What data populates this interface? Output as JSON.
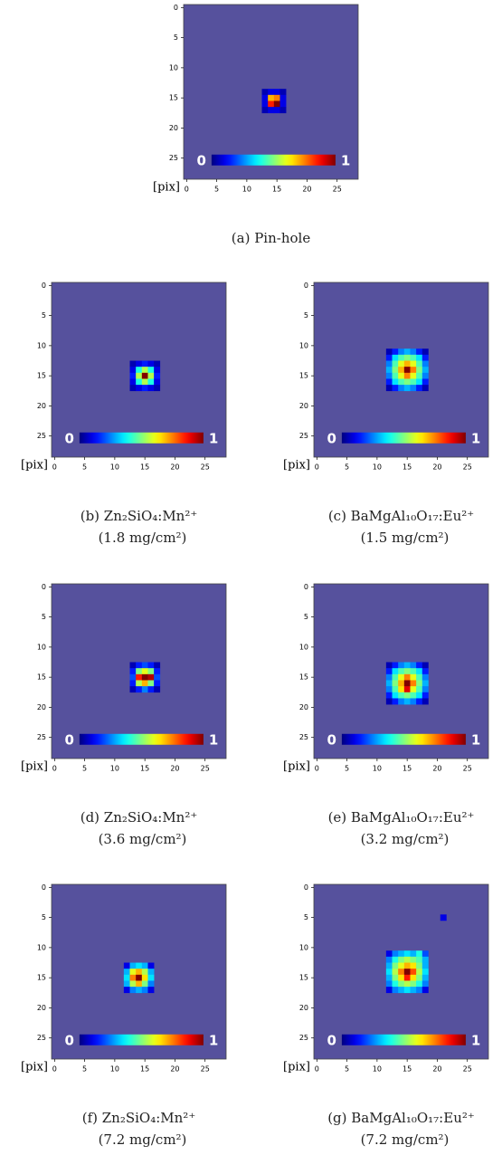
{
  "chart_data": [
    {
      "type": "heatmap",
      "caption": [
        "(a) Pin-hole"
      ],
      "axis_label": "[pix]",
      "colormap": "jet",
      "background": "#56519d",
      "xlim": [
        -0.5,
        28.5
      ],
      "ylim": [
        28.5,
        -0.5
      ],
      "xticks": [
        0,
        5,
        10,
        15,
        20,
        25
      ],
      "yticks": [
        0,
        5,
        10,
        15,
        20,
        25
      ],
      "colorbar_ticks": [
        0,
        1
      ],
      "x": [
        13,
        14,
        15,
        16,
        13,
        14,
        15,
        16,
        13,
        14,
        15,
        16,
        13,
        14,
        15,
        16
      ],
      "y": [
        14,
        14,
        14,
        14,
        15,
        15,
        15,
        15,
        16,
        16,
        16,
        16,
        17,
        17,
        17,
        17
      ],
      "values": [
        0.05,
        0.1,
        0.1,
        0.05,
        0.1,
        0.7,
        0.75,
        0.1,
        0.1,
        0.85,
        1,
        0.1,
        0.05,
        0.1,
        0.1,
        0.05
      ]
    },
    {
      "type": "heatmap",
      "caption": [
        "(b) Zn₂SiO₄:Mn²⁺",
        "(1.8 mg/cm²)"
      ],
      "axis_label": "[pix]",
      "colormap": "jet",
      "background": "#56519d",
      "xlim": [
        -0.5,
        28.5
      ],
      "ylim": [
        28.5,
        -0.5
      ],
      "xticks": [
        0,
        5,
        10,
        15,
        20,
        25
      ],
      "yticks": [
        0,
        5,
        10,
        15,
        20,
        25
      ],
      "colorbar_ticks": [
        0,
        1
      ],
      "x": [
        13,
        14,
        15,
        16,
        17,
        13,
        14,
        15,
        16,
        17,
        13,
        14,
        15,
        16,
        17,
        13,
        14,
        15,
        16,
        17,
        13,
        14,
        15,
        16,
        17
      ],
      "y": [
        13,
        13,
        13,
        13,
        13,
        14,
        14,
        14,
        14,
        14,
        15,
        15,
        15,
        15,
        15,
        16,
        16,
        16,
        16,
        16,
        17,
        17,
        17,
        17,
        17
      ],
      "values": [
        0.05,
        0.1,
        0.15,
        0.1,
        0.05,
        0.1,
        0.4,
        0.55,
        0.4,
        0.1,
        0.15,
        0.55,
        1,
        0.55,
        0.15,
        0.1,
        0.4,
        0.55,
        0.4,
        0.1,
        0.05,
        0.1,
        0.15,
        0.1,
        0.05
      ]
    },
    {
      "type": "heatmap",
      "caption": [
        "(c) BaMgAl₁₀O₁₇:Eu²⁺",
        "(1.5 mg/cm²)"
      ],
      "axis_label": "[pix]",
      "colormap": "jet",
      "background": "#56519d",
      "xlim": [
        -0.5,
        28.5
      ],
      "ylim": [
        28.5,
        -0.5
      ],
      "xticks": [
        0,
        5,
        10,
        15,
        20,
        25
      ],
      "yticks": [
        0,
        5,
        10,
        15,
        20,
        25
      ],
      "colorbar_ticks": [
        0,
        1
      ],
      "x": [
        12,
        13,
        14,
        15,
        16,
        17,
        18,
        12,
        13,
        14,
        15,
        16,
        17,
        18,
        12,
        13,
        14,
        15,
        16,
        17,
        18,
        12,
        13,
        14,
        15,
        16,
        17,
        18,
        12,
        13,
        14,
        15,
        16,
        17,
        18,
        12,
        13,
        14,
        15,
        16,
        17,
        18,
        12,
        13,
        14,
        15,
        16,
        17,
        18
      ],
      "y": [
        11,
        11,
        11,
        11,
        11,
        11,
        11,
        12,
        12,
        12,
        12,
        12,
        12,
        12,
        13,
        13,
        13,
        13,
        13,
        13,
        13,
        14,
        14,
        14,
        14,
        14,
        14,
        14,
        15,
        15,
        15,
        15,
        15,
        15,
        15,
        16,
        16,
        16,
        16,
        16,
        16,
        16,
        17,
        17,
        17,
        17,
        17,
        17,
        17
      ],
      "values": [
        0.05,
        0.15,
        0.25,
        0.3,
        0.25,
        0.15,
        0.05,
        0.15,
        0.35,
        0.45,
        0.5,
        0.45,
        0.35,
        0.15,
        0.25,
        0.45,
        0.6,
        0.7,
        0.6,
        0.45,
        0.25,
        0.3,
        0.5,
        0.7,
        1,
        0.75,
        0.5,
        0.3,
        0.25,
        0.45,
        0.6,
        0.75,
        0.6,
        0.45,
        0.25,
        0.15,
        0.35,
        0.45,
        0.5,
        0.45,
        0.35,
        0.15,
        0.05,
        0.15,
        0.25,
        0.3,
        0.25,
        0.15,
        0.05
      ]
    },
    {
      "type": "heatmap",
      "caption": [
        "(d) Zn₂SiO₄:Mn²⁺",
        "(3.6 mg/cm²)"
      ],
      "axis_label": "[pix]",
      "colormap": "jet",
      "background": "#56519d",
      "xlim": [
        -0.5,
        28.5
      ],
      "ylim": [
        28.5,
        -0.5
      ],
      "xticks": [
        0,
        5,
        10,
        15,
        20,
        25
      ],
      "yticks": [
        0,
        5,
        10,
        15,
        20,
        25
      ],
      "colorbar_ticks": [
        0,
        1
      ],
      "x": [
        13,
        14,
        15,
        16,
        17,
        13,
        14,
        15,
        16,
        17,
        13,
        14,
        15,
        16,
        17,
        13,
        14,
        15,
        16,
        17,
        13,
        14,
        15,
        16,
        17
      ],
      "y": [
        13,
        13,
        13,
        13,
        13,
        14,
        14,
        14,
        14,
        14,
        15,
        15,
        15,
        15,
        15,
        16,
        16,
        16,
        16,
        16,
        17,
        17,
        17,
        17,
        17
      ],
      "values": [
        0.05,
        0.15,
        0.2,
        0.15,
        0.05,
        0.15,
        0.5,
        0.6,
        0.5,
        0.15,
        0.2,
        0.85,
        1,
        0.95,
        0.2,
        0.15,
        0.55,
        0.7,
        0.5,
        0.15,
        0.05,
        0.15,
        0.25,
        0.15,
        0.05
      ]
    },
    {
      "type": "heatmap",
      "caption": [
        "(e) BaMgAl₁₀O₁₇:Eu²⁺",
        "(3.2 mg/cm²)"
      ],
      "axis_label": "[pix]",
      "colormap": "jet",
      "background": "#56519d",
      "xlim": [
        -0.5,
        28.5
      ],
      "ylim": [
        28.5,
        -0.5
      ],
      "xticks": [
        0,
        5,
        10,
        15,
        20,
        25
      ],
      "yticks": [
        0,
        5,
        10,
        15,
        20,
        25
      ],
      "colorbar_ticks": [
        0,
        1
      ],
      "x": [
        12,
        13,
        14,
        15,
        16,
        17,
        18,
        12,
        13,
        14,
        15,
        16,
        17,
        18,
        12,
        13,
        14,
        15,
        16,
        17,
        18,
        12,
        13,
        14,
        15,
        16,
        17,
        18,
        12,
        13,
        14,
        15,
        16,
        17,
        18,
        12,
        13,
        14,
        15,
        16,
        17,
        18,
        12,
        13,
        14,
        15,
        16,
        17,
        18
      ],
      "y": [
        13,
        13,
        13,
        13,
        13,
        13,
        13,
        14,
        14,
        14,
        14,
        14,
        14,
        14,
        15,
        15,
        15,
        15,
        15,
        15,
        15,
        16,
        16,
        16,
        16,
        16,
        16,
        16,
        17,
        17,
        17,
        17,
        17,
        17,
        17,
        18,
        18,
        18,
        18,
        18,
        18,
        18,
        19,
        19,
        19,
        19,
        19,
        19,
        19
      ],
      "values": [
        0.05,
        0.15,
        0.25,
        0.3,
        0.25,
        0.15,
        0.05,
        0.15,
        0.35,
        0.45,
        0.5,
        0.45,
        0.35,
        0.15,
        0.25,
        0.45,
        0.6,
        0.75,
        0.6,
        0.45,
        0.25,
        0.3,
        0.5,
        0.7,
        1,
        0.75,
        0.5,
        0.3,
        0.25,
        0.45,
        0.65,
        0.9,
        0.6,
        0.45,
        0.25,
        0.15,
        0.35,
        0.45,
        0.5,
        0.45,
        0.35,
        0.15,
        0.05,
        0.15,
        0.25,
        0.3,
        0.25,
        0.15,
        0.05
      ]
    },
    {
      "type": "heatmap",
      "caption": [
        "(f) Zn₂SiO₄:Mn²⁺",
        "(7.2 mg/cm²)"
      ],
      "axis_label": "[pix]",
      "colormap": "jet",
      "background": "#56519d",
      "xlim": [
        -0.5,
        28.5
      ],
      "ylim": [
        28.5,
        -0.5
      ],
      "xticks": [
        0,
        5,
        10,
        15,
        20,
        25
      ],
      "yticks": [
        0,
        5,
        10,
        15,
        20,
        25
      ],
      "colorbar_ticks": [
        0,
        1
      ],
      "x": [
        12,
        13,
        14,
        15,
        16,
        12,
        13,
        14,
        15,
        16,
        12,
        13,
        14,
        15,
        16,
        12,
        13,
        14,
        15,
        16,
        12,
        13,
        14,
        15,
        16
      ],
      "y": [
        13,
        13,
        13,
        13,
        13,
        14,
        14,
        14,
        14,
        14,
        15,
        15,
        15,
        15,
        15,
        16,
        16,
        16,
        16,
        16,
        17,
        17,
        17,
        17,
        17
      ],
      "values": [
        0.1,
        0.3,
        0.35,
        0.3,
        0.1,
        0.3,
        0.6,
        0.7,
        0.55,
        0.3,
        0.35,
        0.75,
        1,
        0.65,
        0.35,
        0.3,
        0.55,
        0.7,
        0.5,
        0.25,
        0.1,
        0.25,
        0.3,
        0.25,
        0.1
      ]
    },
    {
      "type": "heatmap",
      "caption": [
        "(g) BaMgAl₁₀O₁₇:Eu²⁺",
        "(7.2 mg/cm²)"
      ],
      "axis_label": "[pix]",
      "colormap": "jet",
      "background": "#56519d",
      "xlim": [
        -0.5,
        28.5
      ],
      "ylim": [
        28.5,
        -0.5
      ],
      "xticks": [
        0,
        5,
        10,
        15,
        20,
        25
      ],
      "yticks": [
        0,
        5,
        10,
        15,
        20,
        25
      ],
      "colorbar_ticks": [
        0,
        1
      ],
      "x": [
        12,
        13,
        14,
        15,
        16,
        17,
        18,
        12,
        13,
        14,
        15,
        16,
        17,
        18,
        12,
        13,
        14,
        15,
        16,
        17,
        18,
        12,
        13,
        14,
        15,
        16,
        17,
        18,
        12,
        13,
        14,
        15,
        16,
        17,
        18,
        12,
        13,
        14,
        15,
        16,
        17,
        18,
        12,
        13,
        14,
        15,
        16,
        17,
        18,
        21
      ],
      "y": [
        11,
        11,
        11,
        11,
        11,
        11,
        11,
        12,
        12,
        12,
        12,
        12,
        12,
        12,
        13,
        13,
        13,
        13,
        13,
        13,
        13,
        14,
        14,
        14,
        14,
        14,
        14,
        14,
        15,
        15,
        15,
        15,
        15,
        15,
        15,
        16,
        16,
        16,
        16,
        16,
        16,
        16,
        17,
        17,
        17,
        17,
        17,
        17,
        17,
        5
      ],
      "values": [
        0.1,
        0.25,
        0.3,
        0.35,
        0.3,
        0.4,
        0.2,
        0.25,
        0.4,
        0.5,
        0.55,
        0.5,
        0.45,
        0.3,
        0.3,
        0.5,
        0.6,
        0.7,
        0.65,
        0.5,
        0.3,
        0.35,
        0.55,
        0.75,
        1,
        0.8,
        0.55,
        0.35,
        0.3,
        0.5,
        0.65,
        0.85,
        0.65,
        0.5,
        0.3,
        0.25,
        0.4,
        0.5,
        0.55,
        0.5,
        0.4,
        0.25,
        0.1,
        0.25,
        0.3,
        0.35,
        0.3,
        0.25,
        0.1,
        0.1
      ]
    }
  ]
}
